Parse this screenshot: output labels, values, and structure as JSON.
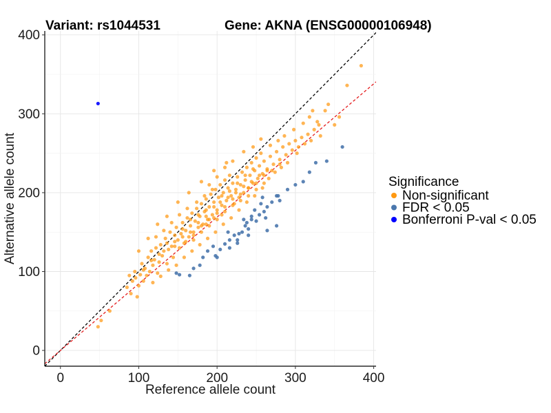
{
  "chart_data": {
    "type": "scatter",
    "title_left": "Variant: rs1044531",
    "title_right": "Gene: AKNA (ENSG00000106948)",
    "xlabel": "Reference allele count",
    "ylabel": "Alternative allele count",
    "xlim": [
      -20,
      403
    ],
    "ylim": [
      -20,
      405
    ],
    "x_ticks": [
      0,
      100,
      200,
      300,
      400
    ],
    "y_ticks": [
      0,
      100,
      200,
      300,
      400
    ],
    "grid": true,
    "legend_position": "right",
    "legend_title": "Significance",
    "reference_lines": [
      {
        "name": "identity",
        "slope": 1.0,
        "intercept": 0,
        "color": "#000000",
        "dash": "dashed"
      },
      {
        "name": "fit",
        "slope": 0.845,
        "intercept": 0,
        "color": "#e41a1c",
        "dash": "dashed"
      }
    ],
    "series": [
      {
        "name": "Non-significant",
        "color": "#ff9912",
        "points": [
          [
            48,
            30
          ],
          [
            52,
            38
          ],
          [
            63,
            50
          ],
          [
            85,
            80
          ],
          [
            88,
            95
          ],
          [
            90,
            72
          ],
          [
            92,
            88
          ],
          [
            95,
            100
          ],
          [
            98,
            68
          ],
          [
            100,
            82
          ],
          [
            102,
            96
          ],
          [
            104,
            110
          ],
          [
            106,
            88
          ],
          [
            108,
            104
          ],
          [
            110,
            95
          ],
          [
            112,
            118
          ],
          [
            114,
            100
          ],
          [
            116,
            126
          ],
          [
            118,
            108
          ],
          [
            120,
            115
          ],
          [
            122,
            130
          ],
          [
            124,
            98
          ],
          [
            126,
            112
          ],
          [
            128,
            134
          ],
          [
            130,
            120
          ],
          [
            132,
            126
          ],
          [
            134,
            142
          ],
          [
            136,
            110
          ],
          [
            138,
            128
          ],
          [
            140,
            150
          ],
          [
            142,
            132
          ],
          [
            144,
            118
          ],
          [
            146,
            138
          ],
          [
            148,
            156
          ],
          [
            150,
            140
          ],
          [
            152,
            130
          ],
          [
            154,
            148
          ],
          [
            156,
            162
          ],
          [
            158,
            136
          ],
          [
            160,
            152
          ],
          [
            162,
            168
          ],
          [
            164,
            144
          ],
          [
            166,
            158
          ],
          [
            168,
            174
          ],
          [
            170,
            150
          ],
          [
            172,
            164
          ],
          [
            174,
            180
          ],
          [
            176,
            156
          ],
          [
            178,
            170
          ],
          [
            180,
            186
          ],
          [
            182,
            160
          ],
          [
            184,
            176
          ],
          [
            186,
            192
          ],
          [
            188,
            166
          ],
          [
            190,
            182
          ],
          [
            192,
            198
          ],
          [
            194,
            172
          ],
          [
            196,
            188
          ],
          [
            198,
            204
          ],
          [
            200,
            178
          ],
          [
            202,
            194
          ],
          [
            204,
            210
          ],
          [
            206,
            184
          ],
          [
            208,
            200
          ],
          [
            210,
            216
          ],
          [
            212,
            190
          ],
          [
            214,
            206
          ],
          [
            216,
            222
          ],
          [
            218,
            196
          ],
          [
            220,
            212
          ],
          [
            222,
            186
          ],
          [
            224,
            204
          ],
          [
            226,
            220
          ],
          [
            228,
            194
          ],
          [
            230,
            210
          ],
          [
            232,
            226
          ],
          [
            234,
            200
          ],
          [
            236,
            216
          ],
          [
            238,
            232
          ],
          [
            240,
            206
          ],
          [
            242,
            222
          ],
          [
            244,
            238
          ],
          [
            246,
            212
          ],
          [
            248,
            228
          ],
          [
            250,
            244
          ],
          [
            252,
            218
          ],
          [
            254,
            234
          ],
          [
            256,
            250
          ],
          [
            258,
            224
          ],
          [
            260,
            240
          ],
          [
            264,
            230
          ],
          [
            268,
            246
          ],
          [
            272,
            236
          ],
          [
            276,
            252
          ],
          [
            280,
            242
          ],
          [
            284,
            258
          ],
          [
            288,
            248
          ],
          [
            292,
            262
          ],
          [
            296,
            254
          ],
          [
            300,
            266
          ],
          [
            304,
            258
          ],
          [
            308,
            270
          ],
          [
            312,
            262
          ],
          [
            316,
            274
          ],
          [
            320,
            266
          ],
          [
            324,
            280
          ],
          [
            328,
            290
          ],
          [
            332,
            272
          ],
          [
            338,
            304
          ],
          [
            342,
            312
          ],
          [
            350,
            286
          ],
          [
            356,
            296
          ],
          [
            366,
            336
          ],
          [
            384,
            361
          ],
          [
            322,
            304
          ],
          [
            246,
            258
          ],
          [
            256,
            268
          ],
          [
            234,
            252
          ],
          [
            212,
            238
          ],
          [
            196,
            228
          ],
          [
            180,
            214
          ],
          [
            164,
            200
          ],
          [
            150,
            188
          ],
          [
            136,
            170
          ],
          [
            124,
            160
          ],
          [
            112,
            142
          ],
          [
            100,
            126
          ],
          [
            170,
            140
          ],
          [
            180,
            150
          ],
          [
            190,
            158
          ],
          [
            200,
            166
          ],
          [
            210,
            176
          ],
          [
            220,
            184
          ],
          [
            230,
            190
          ],
          [
            240,
            196
          ],
          [
            250,
            204
          ],
          [
            260,
            212
          ],
          [
            186,
            170
          ],
          [
            176,
            162
          ],
          [
            166,
            150
          ],
          [
            156,
            144
          ],
          [
            146,
            132
          ],
          [
            204,
            188
          ],
          [
            214,
            194
          ],
          [
            224,
            200
          ],
          [
            234,
            208
          ],
          [
            244,
            214
          ],
          [
            254,
            222
          ],
          [
            264,
            228
          ],
          [
            174,
            188
          ],
          [
            184,
            196
          ],
          [
            194,
            204
          ],
          [
            162,
            180
          ],
          [
            152,
            172
          ],
          [
            142,
            162
          ],
          [
            132,
            152
          ],
          [
            122,
            144
          ],
          [
            206,
            196
          ],
          [
            216,
            202
          ],
          [
            226,
            212
          ],
          [
            236,
            222
          ],
          [
            246,
            230
          ],
          [
            268,
            260
          ],
          [
            278,
            266
          ],
          [
            286,
            272
          ],
          [
            298,
            280
          ],
          [
            310,
            288
          ],
          [
            318,
            296
          ],
          [
            330,
            286
          ],
          [
            302,
            250
          ],
          [
            290,
            238
          ],
          [
            282,
            232
          ],
          [
            274,
            226
          ],
          [
            266,
            218
          ],
          [
            258,
            206
          ],
          [
            248,
            196
          ],
          [
            238,
            188
          ],
          [
            228,
            178
          ],
          [
            218,
            168
          ],
          [
            208,
            160
          ],
          [
            198,
            150
          ],
          [
            188,
            142
          ],
          [
            178,
            134
          ],
          [
            168,
            126
          ],
          [
            158,
            118
          ],
          [
            148,
            108
          ],
          [
            138,
            102
          ],
          [
            128,
            94
          ],
          [
            118,
            86
          ],
          [
            190,
            210
          ],
          [
            200,
            220
          ],
          [
            210,
            232
          ],
          [
            220,
            240
          ],
          [
            186,
            178
          ],
          [
            196,
            182
          ],
          [
            206,
            172
          ],
          [
            196,
            168
          ],
          [
            186,
            160
          ],
          [
            176,
            172
          ],
          [
            166,
            166
          ],
          [
            156,
            154
          ],
          [
            146,
            146
          ],
          [
            136,
            136
          ],
          [
            126,
            122
          ],
          [
            116,
            114
          ],
          [
            106,
            102
          ],
          [
            96,
            92
          ],
          [
            160,
            138
          ],
          [
            170,
            146
          ],
          [
            180,
            158
          ],
          [
            190,
            166
          ],
          [
            200,
            174
          ],
          [
            210,
            182
          ],
          [
            220,
            192
          ],
          [
            230,
            198
          ],
          [
            240,
            206
          ],
          [
            250,
            212
          ],
          [
            260,
            222
          ],
          [
            270,
            228
          ],
          [
            280,
            236
          ]
        ]
      },
      {
        "name": "FDR < 0.05",
        "color": "#4a77ad",
        "points": [
          [
            148,
            98
          ],
          [
            152,
            96
          ],
          [
            165,
            95
          ],
          [
            170,
            104
          ],
          [
            178,
            108
          ],
          [
            182,
            118
          ],
          [
            188,
            126
          ],
          [
            195,
            132
          ],
          [
            198,
            120
          ],
          [
            204,
            128
          ],
          [
            210,
            135
          ],
          [
            216,
            140
          ],
          [
            222,
            146
          ],
          [
            226,
            136
          ],
          [
            232,
            150
          ],
          [
            236,
            158
          ],
          [
            240,
            154
          ],
          [
            244,
            166
          ],
          [
            250,
            164
          ],
          [
            254,
            172
          ],
          [
            260,
            176
          ],
          [
            264,
            182
          ],
          [
            270,
            188
          ],
          [
            276,
            196
          ],
          [
            280,
            190
          ],
          [
            248,
            178
          ],
          [
            256,
            186
          ],
          [
            240,
            146
          ],
          [
            262,
            168
          ],
          [
            276,
            158
          ],
          [
            226,
            140
          ],
          [
            214,
            150
          ],
          [
            234,
            166
          ],
          [
            244,
            170
          ],
          [
            264,
            152
          ],
          [
            278,
            196
          ],
          [
            290,
            204
          ],
          [
            300,
            210
          ],
          [
            310,
            214
          ],
          [
            318,
            226
          ],
          [
            326,
            238
          ],
          [
            360,
            258
          ],
          [
            340,
            240
          ],
          [
            200,
            118
          ],
          [
            216,
            130
          ],
          [
            228,
            148
          ],
          [
            238,
            162
          ],
          [
            258,
            194
          ]
        ]
      },
      {
        "name": "Bonferroni P-val < 0.05",
        "color": "#0000ff",
        "points": [
          [
            48,
            313
          ]
        ]
      }
    ]
  }
}
